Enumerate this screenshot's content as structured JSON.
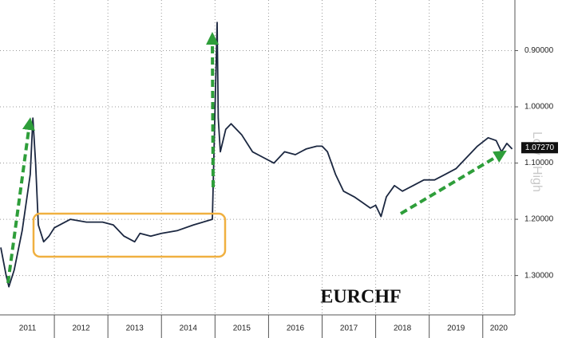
{
  "chart_data": {
    "type": "line",
    "annotation": "EURCHF",
    "side_labels": [
      "Low",
      "High"
    ],
    "categories": [
      "2011",
      "2012",
      "2013",
      "2014",
      "2015",
      "2016",
      "2017",
      "2018",
      "2019",
      "2020"
    ],
    "xlim": [
      2011,
      2020.6
    ],
    "ylim": [
      1.37,
      0.81
    ],
    "yticks": [
      {
        "value": 0.9,
        "label": "0.90000"
      },
      {
        "value": 1.0,
        "label": "1.00000"
      },
      {
        "value": 1.1,
        "label": "1.10000"
      },
      {
        "value": 1.2,
        "label": "1.20000"
      },
      {
        "value": 1.3,
        "label": "1.30000"
      }
    ],
    "last_price": {
      "value": 1.0727,
      "label": "1.07270"
    },
    "grid": true,
    "series": [
      {
        "name": "EURCHF",
        "color": "#1b2740",
        "x": [
          2011.0,
          2011.1,
          2011.15,
          2011.25,
          2011.4,
          2011.55,
          2011.6,
          2011.65,
          2011.7,
          2011.8,
          2011.9,
          2012.0,
          2012.3,
          2012.6,
          2012.9,
          2013.1,
          2013.3,
          2013.5,
          2013.6,
          2013.8,
          2014.0,
          2014.3,
          2014.6,
          2014.95,
          2015.04,
          2015.06,
          2015.1,
          2015.2,
          2015.3,
          2015.5,
          2015.7,
          2015.9,
          2016.1,
          2016.3,
          2016.5,
          2016.7,
          2016.9,
          2017.0,
          2017.1,
          2017.25,
          2017.4,
          2017.6,
          2017.75,
          2017.9,
          2018.0,
          2018.1,
          2018.2,
          2018.35,
          2018.5,
          2018.7,
          2018.9,
          2019.1,
          2019.3,
          2019.5,
          2019.7,
          2019.9,
          2020.1,
          2020.25,
          2020.35,
          2020.45,
          2020.55
        ],
        "values": [
          1.25,
          1.3,
          1.32,
          1.29,
          1.22,
          1.12,
          1.02,
          1.1,
          1.21,
          1.24,
          1.23,
          1.215,
          1.2,
          1.205,
          1.205,
          1.21,
          1.23,
          1.24,
          1.225,
          1.23,
          1.225,
          1.22,
          1.21,
          1.2,
          0.85,
          1.02,
          1.08,
          1.04,
          1.03,
          1.05,
          1.08,
          1.09,
          1.1,
          1.08,
          1.085,
          1.075,
          1.07,
          1.07,
          1.08,
          1.12,
          1.15,
          1.16,
          1.17,
          1.18,
          1.175,
          1.195,
          1.16,
          1.14,
          1.15,
          1.14,
          1.13,
          1.13,
          1.12,
          1.11,
          1.09,
          1.07,
          1.055,
          1.06,
          1.08,
          1.065,
          1.075
        ]
      }
    ]
  }
}
